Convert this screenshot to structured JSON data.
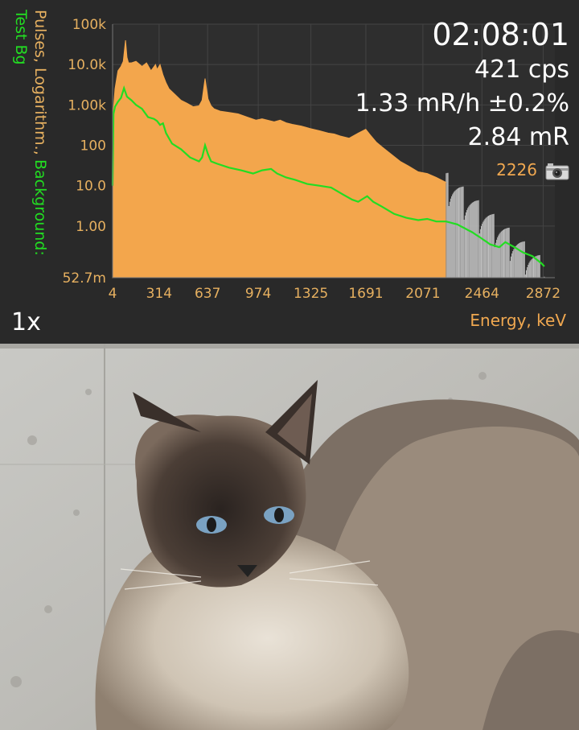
{
  "app": {
    "y_axis_title": "Pulses, Logarithm., ",
    "y_axis_background_label": "Background:",
    "background_name": "Test Bg",
    "time": "02:08:01",
    "count_rate": "421 cps",
    "dose_rate": "1.33 mR/h ±0.2%",
    "dose": "2.84 mR",
    "channel": "2226",
    "zoom": "1x",
    "x_axis_title": "Energy, keV",
    "icons": {
      "camera": "camera-icon"
    },
    "colors": {
      "spectrum_fill": "#f3a64c",
      "background_line": "#22dd22",
      "axis_text": "#e6b060",
      "text": "#ffffff",
      "panel_bg": "#292929"
    }
  },
  "chart_data": {
    "type": "area",
    "xlabel": "Energy, keV",
    "ylabel": "Pulses, Logarithm.",
    "y_scale": "log",
    "xlim": [
      4,
      2950
    ],
    "ylim": [
      0.0527,
      100000
    ],
    "x_ticks": [
      "4",
      "314",
      "637",
      "974",
      "1325",
      "1691",
      "2071",
      "2464",
      "2872"
    ],
    "y_ticks": [
      "100k",
      "10.0k",
      "1.00k",
      "100",
      "10.0",
      "1.00",
      "52.7m"
    ],
    "grid": true,
    "cursor_channel_keV": 2226,
    "series": [
      {
        "name": "Pulses",
        "x": [
          4,
          10,
          20,
          40,
          60,
          75,
          90,
          100,
          110,
          130,
          160,
          200,
          230,
          260,
          290,
          300,
          320,
          340,
          360,
          380,
          420,
          460,
          500,
          540,
          580,
          600,
          620,
          640,
          660,
          680,
          720,
          780,
          840,
          900,
          960,
          1000,
          1080,
          1120,
          1160,
          1200,
          1260,
          1320,
          1380,
          1440,
          1480,
          1520,
          1580,
          1640,
          1690,
          1720,
          1760,
          1800,
          1860,
          1920,
          1980,
          2040,
          2100,
          2160,
          2226
        ],
        "values": [
          0.1,
          800,
          2500,
          7000,
          9000,
          12000,
          40000,
          15000,
          11000,
          11000,
          12000,
          9000,
          11000,
          7000,
          10000,
          7500,
          10000,
          5500,
          3500,
          2500,
          1800,
          1300,
          1100,
          900,
          950,
          1300,
          4500,
          1400,
          950,
          800,
          700,
          650,
          600,
          500,
          420,
          450,
          380,
          420,
          360,
          330,
          300,
          260,
          230,
          200,
          190,
          170,
          150,
          200,
          250,
          180,
          120,
          90,
          60,
          40,
          30,
          22,
          20,
          16,
          12
        ]
      },
      {
        "name": "Test Bg",
        "x": [
          4,
          10,
          20,
          40,
          60,
          80,
          100,
          130,
          160,
          200,
          240,
          280,
          300,
          320,
          340,
          360,
          400,
          460,
          520,
          580,
          600,
          620,
          640,
          660,
          700,
          780,
          860,
          940,
          1000,
          1060,
          1100,
          1160,
          1220,
          1300,
          1380,
          1460,
          1540,
          1600,
          1640,
          1700,
          1740,
          1800,
          1880,
          1960,
          2040,
          2100,
          2160,
          2226,
          2300,
          2400,
          2460,
          2520,
          2580,
          2620,
          2680,
          2740,
          2800,
          2860,
          2880
        ],
        "values": [
          10,
          600,
          900,
          1200,
          1500,
          2600,
          1600,
          1300,
          1000,
          800,
          500,
          450,
          400,
          320,
          350,
          200,
          110,
          80,
          50,
          40,
          50,
          100,
          60,
          40,
          35,
          28,
          24,
          20,
          24,
          26,
          20,
          16,
          14,
          11,
          10,
          9,
          6,
          4.5,
          4,
          5.5,
          4,
          3,
          2,
          1.6,
          1.4,
          1.5,
          1.3,
          1.3,
          1.1,
          0.7,
          0.5,
          0.35,
          0.3,
          0.4,
          0.3,
          0.22,
          0.18,
          0.12,
          0.1
        ]
      }
    ]
  }
}
